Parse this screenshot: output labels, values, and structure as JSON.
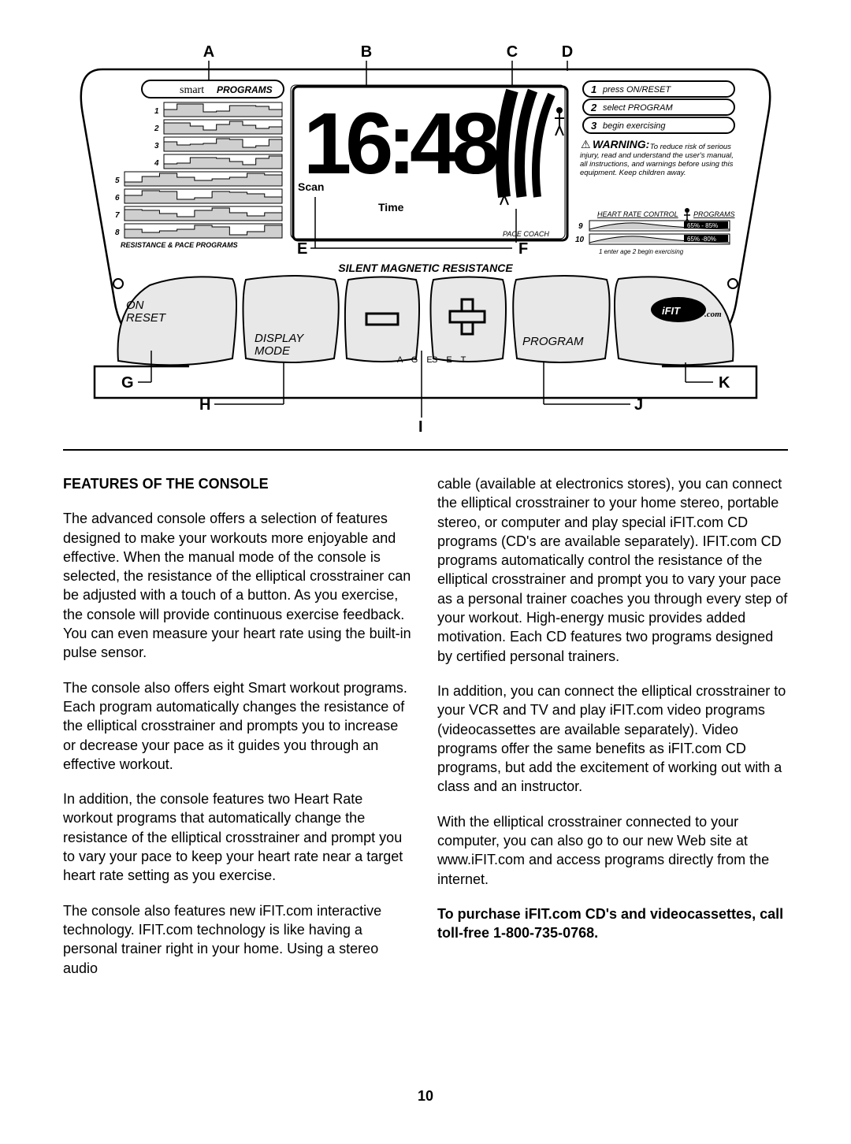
{
  "diagram": {
    "markers_top": [
      "A",
      "B",
      "C",
      "D"
    ],
    "markers_mid": [
      "E",
      "F"
    ],
    "markers_bottom": [
      "G",
      "H",
      "I",
      "J",
      "K"
    ],
    "smart_programs_label_a": "smart",
    "smart_programs_label_b": "PROGRAMS",
    "program_numbers": [
      "1",
      "2",
      "3",
      "4",
      "5",
      "6",
      "7",
      "8"
    ],
    "resistance_pace_label": "RESISTANCE & PACE PROGRAMS",
    "scan_label": "Scan",
    "time_label": "Time",
    "pace_coach_label": "PACE COACH",
    "silent_magnetic": "SILENT MAGNETIC RESISTANCE",
    "on_reset": "ON\nRESET",
    "display_mode": "DISPLAY\nMODE",
    "program_label": "PROGRAM",
    "ifit_label": "iFIT.com",
    "age_label": "A G E",
    "set_label": "S E T",
    "instr1_n": "1",
    "instr1_t": "press ON/RESET",
    "instr2_n": "2",
    "instr2_t": "select PROGRAM",
    "instr3_n": "3",
    "instr3_t": "begin exercising",
    "warning_icon": "⚠",
    "warning_label": "WARNING:",
    "warning_text": "To reduce risk of serious injury, read and understand the user's manual, all instructions, and warnings before using this equipment. Keep children away.",
    "hr_control_label": "HEART RATE CONTROL",
    "hr_programs_label": "PROGRAMS",
    "hr_n9": "9",
    "hr_n10": "10",
    "hr_range1": "65% - 85%",
    "hr_range2": "65% -80%",
    "hr_instr": "1 enter age 2 begin exercising",
    "display_digits": "16:48"
  },
  "text": {
    "heading": "FEATURES OF THE CONSOLE",
    "p1": "The advanced console offers a selection of features designed to make your workouts more enjoyable and effective. When the manual mode of the console is selected, the resistance of the elliptical crosstrainer can be adjusted with a touch of a button. As you exercise, the console will provide continuous exercise feedback. You can even measure your heart rate using the built-in pulse sensor.",
    "p2": "The console also offers eight Smart workout programs. Each program automatically changes the resistance of the elliptical crosstrainer and prompts you to increase or decrease your pace as it guides you through an effective workout.",
    "p3": "In addition, the console features two Heart Rate workout programs that automatically change the resistance of the elliptical crosstrainer and prompt you to vary your pace to keep your heart rate near a target heart rate setting as you exercise.",
    "p4": "The console also features new iFIT.com interactive technology. IFIT.com technology is like having a personal trainer right in your home. Using a stereo audio",
    "p5": "cable (available at electronics stores), you can connect the elliptical crosstrainer to your home stereo, portable stereo, or computer and play special iFIT.com CD programs (CD's are available separately). IFIT.com CD programs automatically control the resistance of the elliptical crosstrainer and prompt you to vary your pace as a personal trainer coaches you through every step of your workout. High-energy music provides added motivation. Each CD features two programs designed by certified personal trainers.",
    "p6": "In addition, you can connect the elliptical crosstrainer to your VCR and TV and play iFIT.com video programs (videocassettes are available separately). Video programs offer the same benefits as iFIT.com CD programs, but add the excitement of working out with a class and an instructor.",
    "p7": "With the elliptical crosstrainer connected to your computer, you can also go to our new Web site at www.iFIT.com and access programs directly from the internet.",
    "p8": "To purchase iFIT.com CD's and videocassettes, call toll-free 1-800-735-0768."
  },
  "page_number": "10",
  "colors": {
    "black": "#000000",
    "grey_fill": "#cfcfcf",
    "light_grey": "#e8e8e8"
  }
}
